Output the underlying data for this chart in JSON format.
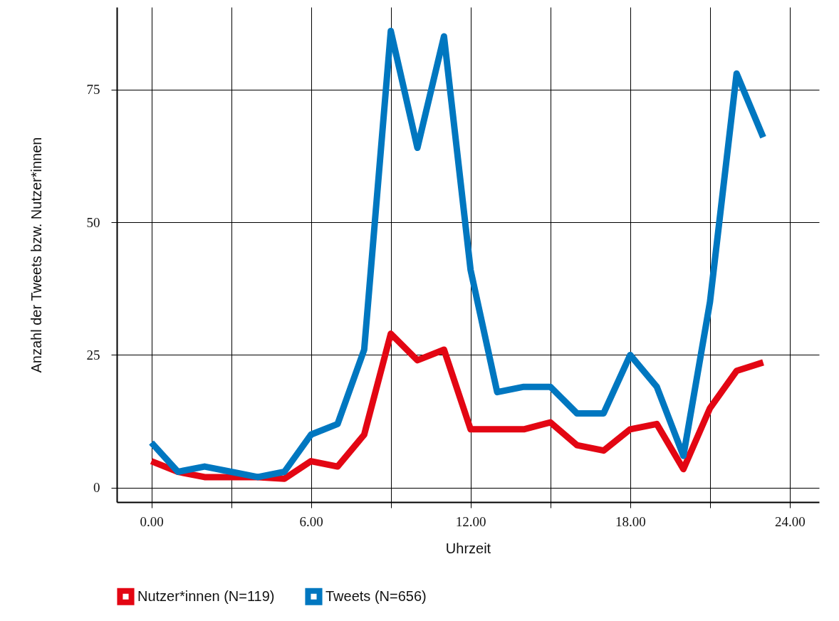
{
  "chart_data": {
    "type": "line",
    "xlabel": "Uhrzeit",
    "ylabel": "Anzahl der Tweets bzw. Nutzer*innen",
    "x": [
      0,
      1,
      2,
      3,
      4,
      5,
      6,
      7,
      8,
      9,
      10,
      11,
      12,
      13,
      14,
      15,
      16,
      17,
      18,
      19,
      20,
      21,
      22,
      23
    ],
    "series": [
      {
        "name": "Nutzer*innen (N=119)",
        "color": "#e30613",
        "values": [
          5,
          3,
          2,
          2,
          2,
          1.7,
          5,
          4,
          10,
          29,
          24,
          26,
          11,
          11,
          11,
          12.3,
          8,
          7,
          11,
          12,
          3.5,
          15,
          22,
          23.6
        ]
      },
      {
        "name": "Tweets (N=656)",
        "color": "#0077c0",
        "values": [
          8.5,
          3,
          4,
          3,
          2,
          3,
          10,
          12,
          26,
          86,
          64,
          85,
          41,
          18,
          19,
          19,
          14,
          14,
          25,
          19,
          6,
          35,
          78,
          66
        ]
      }
    ],
    "xlim": [
      -1.3,
      25.1
    ],
    "ylim": [
      -2.7,
      90.5
    ],
    "xticks": [
      {
        "value": 0,
        "label": "0.00"
      },
      {
        "value": 3,
        "label": null
      },
      {
        "value": 6,
        "label": "6.00"
      },
      {
        "value": 9,
        "label": null
      },
      {
        "value": 12,
        "label": "12.00"
      },
      {
        "value": 15,
        "label": null
      },
      {
        "value": 18,
        "label": "18.00"
      },
      {
        "value": 21,
        "label": null
      },
      {
        "value": 24,
        "label": "24.00"
      }
    ],
    "yticks": [
      0,
      25,
      50,
      75
    ],
    "grid": true,
    "legend": "bottom",
    "marker": "none",
    "line_style": "solid"
  }
}
